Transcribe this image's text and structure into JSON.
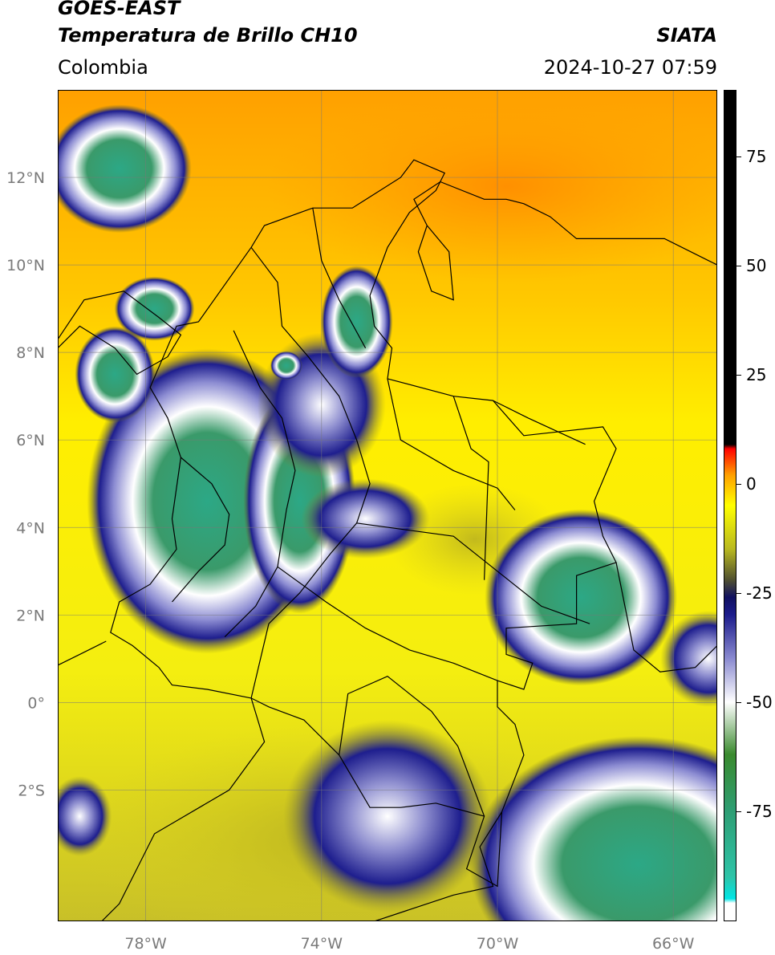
{
  "header": {
    "satellite": "GOES-EAST",
    "product": "Temperatura de Brillo CH10",
    "region": "Colombia",
    "organization": "SIATA",
    "datetime": "2024-10-27 07:59"
  },
  "map": {
    "lon_range": [
      -80,
      -65
    ],
    "lat_range": [
      -5,
      14
    ],
    "lat_ticks": [
      {
        "value": 12,
        "label": "12°N"
      },
      {
        "value": 10,
        "label": "10°N"
      },
      {
        "value": 8,
        "label": "8°N"
      },
      {
        "value": 6,
        "label": "6°N"
      },
      {
        "value": 4,
        "label": "4°N"
      },
      {
        "value": 2,
        "label": "2°N"
      },
      {
        "value": 0,
        "label": "0°"
      },
      {
        "value": -2,
        "label": "2°S"
      }
    ],
    "lon_ticks": [
      {
        "value": -78,
        "label": "78°W"
      },
      {
        "value": -74,
        "label": "74°W"
      },
      {
        "value": -70,
        "label": "70°W"
      },
      {
        "value": -66,
        "label": "66°W"
      }
    ],
    "gridlines": true,
    "field": "brightness temperature (°C)"
  },
  "colorbar": {
    "range": [
      -100,
      90
    ],
    "ticks": [
      {
        "value": 75,
        "label": "75"
      },
      {
        "value": 50,
        "label": "50"
      },
      {
        "value": 25,
        "label": "25"
      },
      {
        "value": 0,
        "label": "0"
      },
      {
        "value": -25,
        "label": "-25"
      },
      {
        "value": -50,
        "label": "-50"
      },
      {
        "value": -75,
        "label": "-75"
      }
    ],
    "stops": [
      {
        "value": -100,
        "color": "#ffffff"
      },
      {
        "value": -96,
        "color": "#ffffff"
      },
      {
        "value": -95,
        "color": "#00e5e5"
      },
      {
        "value": -90,
        "color": "#2ec4a8"
      },
      {
        "value": -75,
        "color": "#2e9e74"
      },
      {
        "value": -62,
        "color": "#3a8a2e"
      },
      {
        "value": -50,
        "color": "#ffffff"
      },
      {
        "value": -40,
        "color": "#8a8ad0"
      },
      {
        "value": -30,
        "color": "#1c1c8c"
      },
      {
        "value": -26,
        "color": "#101060"
      },
      {
        "value": -22,
        "color": "#505030"
      },
      {
        "value": -15,
        "color": "#b8b820"
      },
      {
        "value": -5,
        "color": "#ffff00"
      },
      {
        "value": 2,
        "color": "#ffa000"
      },
      {
        "value": 8,
        "color": "#ff0000"
      },
      {
        "value": 9,
        "color": "#000000"
      },
      {
        "value": 90,
        "color": "#000000"
      }
    ]
  }
}
